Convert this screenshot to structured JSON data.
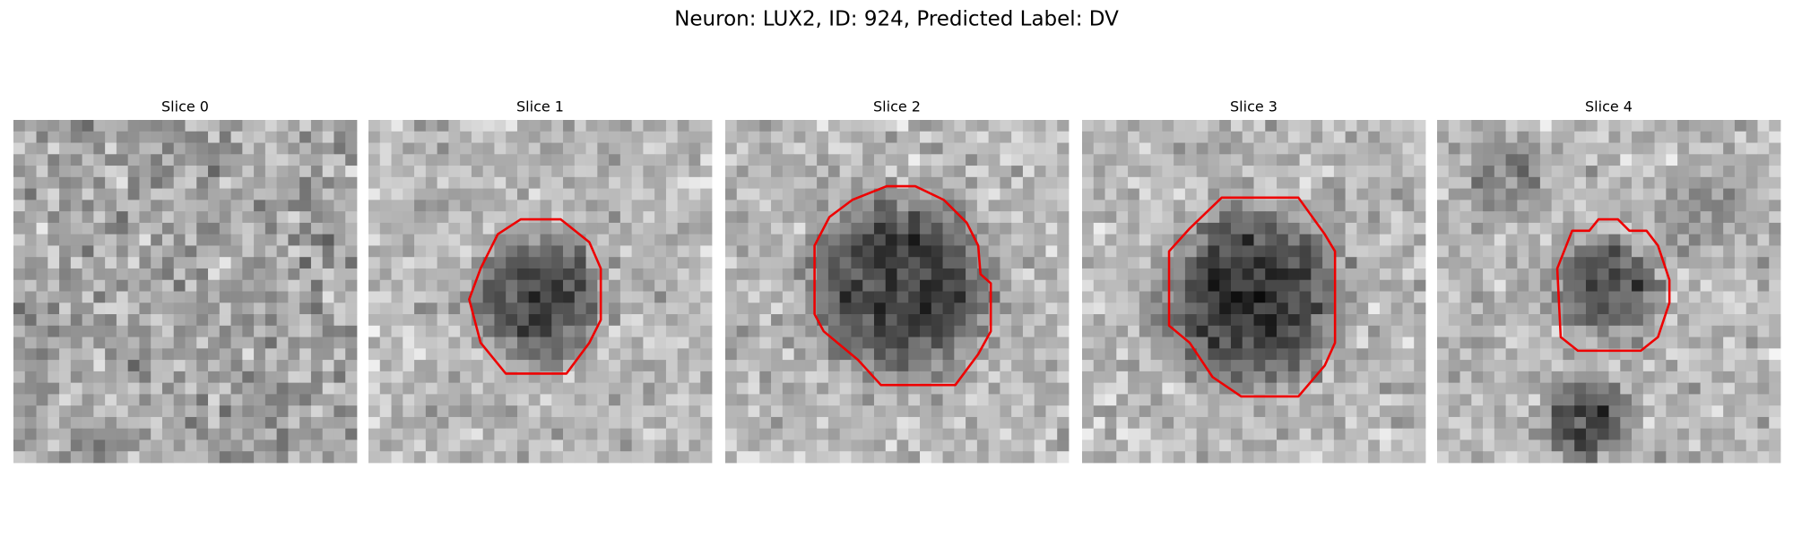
{
  "title": "Neuron: LUX2, ID: 924, Predicted Label: DV",
  "panels": [
    {
      "title": "Slice 0"
    },
    {
      "title": "Slice 1"
    },
    {
      "title": "Slice 2"
    },
    {
      "title": "Slice 3"
    },
    {
      "title": "Slice 4"
    }
  ]
}
